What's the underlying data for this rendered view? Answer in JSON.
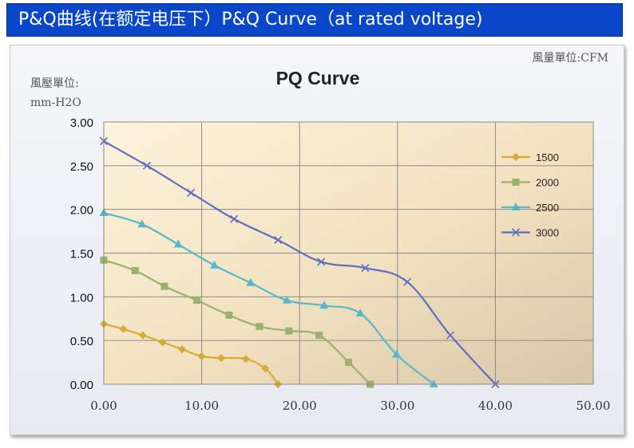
{
  "banner": {
    "text": "P&Q曲线(在额定电压下）P&Q Curve（at rated voltage)"
  },
  "chart_data": {
    "type": "line",
    "title": "PQ Curve",
    "ylabel": [
      "風壓單位:",
      "mm-H2O"
    ],
    "xlabel": "風量單位:CFM",
    "xlim": [
      0,
      50
    ],
    "ylim": [
      0,
      3
    ],
    "xticks": [
      "0.00",
      "10.00",
      "20.00",
      "30.00",
      "40.00",
      "50.00"
    ],
    "yticks": [
      "0.00",
      "0.50",
      "1.00",
      "1.50",
      "2.00",
      "2.50",
      "3.00"
    ],
    "grid": true,
    "legend_position": "right",
    "series": [
      {
        "name": "1500",
        "color": "#d8a935",
        "marker": "diamond",
        "x": [
          0,
          2,
          4,
          6,
          8,
          10,
          12,
          14.5,
          16.5,
          17.8
        ],
        "y": [
          0.69,
          0.63,
          0.56,
          0.48,
          0.4,
          0.32,
          0.3,
          0.29,
          0.18,
          0
        ]
      },
      {
        "name": "2000",
        "color": "#9bb26a",
        "marker": "square",
        "x": [
          0,
          3.2,
          6.2,
          9.5,
          12.8,
          15.9,
          18.9,
          22,
          25,
          27.2
        ],
        "y": [
          1.42,
          1.3,
          1.12,
          0.96,
          0.79,
          0.66,
          0.61,
          0.56,
          0.25,
          0
        ]
      },
      {
        "name": "2500",
        "color": "#57b8c9",
        "marker": "triangle",
        "x": [
          0,
          3.9,
          7.6,
          11.3,
          15,
          18.7,
          22.5,
          26.2,
          29.9,
          33.7
        ],
        "y": [
          1.96,
          1.83,
          1.6,
          1.36,
          1.16,
          0.96,
          0.9,
          0.81,
          0.34,
          0
        ]
      },
      {
        "name": "3000",
        "color": "#5f6fc0",
        "marker": "x",
        "x": [
          0,
          4.4,
          8.9,
          13.3,
          17.8,
          22.2,
          26.7,
          31,
          35.4,
          40
        ],
        "y": [
          2.78,
          2.5,
          2.19,
          1.89,
          1.65,
          1.4,
          1.33,
          1.17,
          0.56,
          0
        ]
      }
    ]
  }
}
